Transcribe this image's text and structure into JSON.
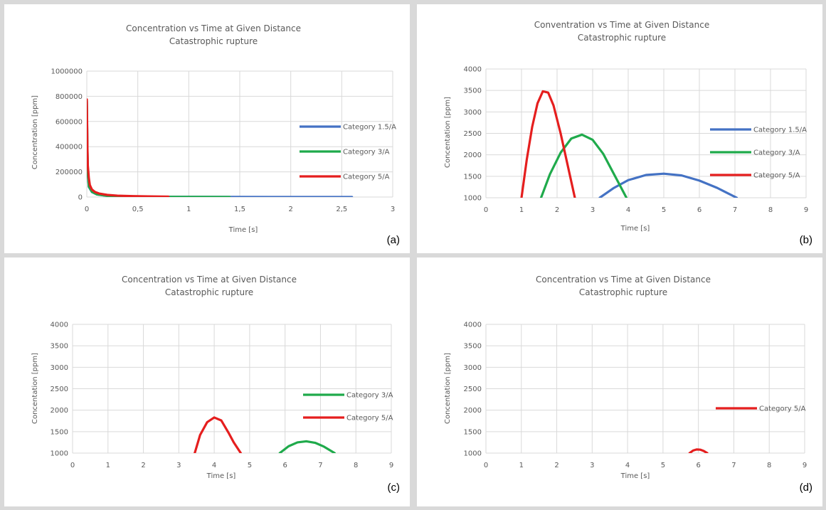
{
  "chart_data": [
    {
      "id": "a",
      "type": "line",
      "panel_label": "(a)",
      "title": [
        "Concentration vs Time at Given Distance",
        "Catastrophic rupture"
      ],
      "xlabel": "Time [s]",
      "ylabel": "Concentration  [ppm]",
      "xlim": [
        0,
        3
      ],
      "ylim": [
        0,
        1000000
      ],
      "x_ticks": [
        "0",
        "0,5",
        "1",
        "1,5",
        "2",
        "2,5",
        "3"
      ],
      "x_tick_values": [
        0,
        0.5,
        1,
        1.5,
        2,
        2.5,
        3
      ],
      "y_ticks": [
        "0",
        "200000",
        "400000",
        "600000",
        "800000",
        "1000000"
      ],
      "y_tick_values": [
        0,
        200000,
        400000,
        600000,
        800000,
        1000000
      ],
      "grid": true,
      "legend_position": "right",
      "series": [
        {
          "name": "Category 1.5/A",
          "color": "#4472c4",
          "x": [
            0,
            0.005,
            0.01,
            0.02,
            0.05,
            0.1,
            0.2,
            0.4,
            0.8,
            1.4,
            2.0,
            2.6
          ],
          "y": [
            760000,
            420000,
            180000,
            80000,
            40000,
            20000,
            9000,
            4000,
            1500,
            600,
            200,
            100
          ]
        },
        {
          "name": "Category 3/A",
          "color": "#1faa4b",
          "x": [
            0,
            0.005,
            0.01,
            0.02,
            0.05,
            0.1,
            0.2,
            0.4,
            0.8,
            1.1,
            1.4
          ],
          "y": [
            770000,
            430000,
            190000,
            85000,
            42000,
            21000,
            10000,
            4000,
            1500,
            700,
            300
          ]
        },
        {
          "name": "Category 5/A",
          "color": "#e51e1e",
          "x": [
            0,
            0.003,
            0.006,
            0.01,
            0.02,
            0.03,
            0.05,
            0.08,
            0.12,
            0.2,
            0.3,
            0.45,
            0.6,
            0.8
          ],
          "y": [
            775000,
            600000,
            400000,
            250000,
            150000,
            95000,
            60000,
            40000,
            28000,
            17000,
            11000,
            7000,
            5000,
            3000
          ]
        }
      ]
    },
    {
      "id": "b",
      "type": "line",
      "panel_label": "(b)",
      "title": [
        "Conventration vs Time at Given Distance",
        "Catastrophic rupture"
      ],
      "xlabel": "Time [s]",
      "ylabel": "Concentation  [ppm]",
      "xlim": [
        0,
        9
      ],
      "ylim": [
        1000,
        4000
      ],
      "x_ticks": [
        "0",
        "1",
        "2",
        "3",
        "4",
        "5",
        "6",
        "7",
        "8",
        "9"
      ],
      "x_tick_values": [
        0,
        1,
        2,
        3,
        4,
        5,
        6,
        7,
        8,
        9
      ],
      "y_ticks": [
        "1000",
        "1500",
        "2000",
        "2500",
        "3000",
        "3500",
        "4000"
      ],
      "y_tick_values": [
        1000,
        1500,
        2000,
        2500,
        3000,
        3500,
        4000
      ],
      "grid": true,
      "legend_position": "right",
      "series": [
        {
          "name": "Category 1.5/A",
          "color": "#4472c4",
          "x": [
            3.2,
            3.6,
            4.0,
            4.5,
            5.0,
            5.5,
            6.0,
            6.5,
            7.05
          ],
          "y": [
            1000,
            1230,
            1410,
            1530,
            1560,
            1520,
            1400,
            1230,
            1000
          ]
        },
        {
          "name": "Category 3/A",
          "color": "#1faa4b",
          "x": [
            1.55,
            1.8,
            2.1,
            2.4,
            2.7,
            3.0,
            3.3,
            3.6,
            3.95
          ],
          "y": [
            1000,
            1550,
            2050,
            2380,
            2470,
            2350,
            2020,
            1550,
            1000
          ]
        },
        {
          "name": "Category 5/A",
          "color": "#e51e1e",
          "x": [
            1.0,
            1.15,
            1.3,
            1.45,
            1.6,
            1.75,
            1.9,
            2.1,
            2.3,
            2.5
          ],
          "y": [
            1000,
            1900,
            2650,
            3200,
            3480,
            3450,
            3150,
            2500,
            1750,
            1000
          ]
        }
      ]
    },
    {
      "id": "c",
      "type": "line",
      "panel_label": "(c)",
      "title": [
        "Concentration vs Time at Given Distance",
        "Catastrophic rupture"
      ],
      "xlabel": "Time [s]",
      "ylabel": "Concentation  [ppm]",
      "xlim": [
        0,
        9
      ],
      "ylim": [
        1000,
        4000
      ],
      "x_ticks": [
        "0",
        "1",
        "2",
        "3",
        "4",
        "5",
        "6",
        "7",
        "8",
        "9"
      ],
      "x_tick_values": [
        0,
        1,
        2,
        3,
        4,
        5,
        6,
        7,
        8,
        9
      ],
      "y_ticks": [
        "1000",
        "1500",
        "2000",
        "2500",
        "3000",
        "3500",
        "4000"
      ],
      "y_tick_values": [
        1000,
        1500,
        2000,
        2500,
        3000,
        3500,
        4000
      ],
      "grid": true,
      "legend_position": "right",
      "series": [
        {
          "name": "Category 3/A",
          "color": "#1faa4b",
          "x": [
            5.85,
            6.1,
            6.35,
            6.6,
            6.85,
            7.1,
            7.4
          ],
          "y": [
            1000,
            1160,
            1250,
            1275,
            1240,
            1150,
            1000
          ]
        },
        {
          "name": "Category 5/A",
          "color": "#e51e1e",
          "x": [
            3.45,
            3.6,
            3.8,
            4.0,
            4.2,
            4.4,
            4.55,
            4.75
          ],
          "y": [
            1000,
            1420,
            1720,
            1830,
            1760,
            1480,
            1250,
            1000
          ]
        }
      ]
    },
    {
      "id": "d",
      "type": "line",
      "panel_label": "(d)",
      "title": [
        "Concentration vs Time at Given Distance",
        "Catastrophic rupture"
      ],
      "xlabel": "Time [s]",
      "ylabel": "Concentation  [ppm]",
      "xlim": [
        0,
        9
      ],
      "ylim": [
        1000,
        4000
      ],
      "x_ticks": [
        "0",
        "1",
        "2",
        "3",
        "4",
        "5",
        "6",
        "7",
        "8",
        "9"
      ],
      "x_tick_values": [
        0,
        1,
        2,
        3,
        4,
        5,
        6,
        7,
        8,
        9
      ],
      "y_ticks": [
        "1000",
        "1500",
        "2000",
        "2500",
        "3000",
        "3500",
        "4000"
      ],
      "y_tick_values": [
        1000,
        1500,
        2000,
        2500,
        3000,
        3500,
        4000
      ],
      "grid": true,
      "legend_position": "right",
      "series": [
        {
          "name": "Category 5/A",
          "color": "#e51e1e",
          "x": [
            5.75,
            5.85,
            5.95,
            6.05,
            6.15,
            6.25
          ],
          "y": [
            1000,
            1060,
            1085,
            1080,
            1050,
            1000
          ]
        }
      ]
    }
  ]
}
